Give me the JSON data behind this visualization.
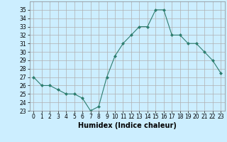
{
  "x": [
    0,
    1,
    2,
    3,
    4,
    5,
    6,
    7,
    8,
    9,
    10,
    11,
    12,
    13,
    14,
    15,
    16,
    17,
    18,
    19,
    20,
    21,
    22,
    23
  ],
  "y": [
    27,
    26,
    26,
    25.5,
    25,
    25,
    24.5,
    23,
    23.5,
    27,
    29.5,
    31,
    32,
    33,
    33,
    35,
    35,
    32,
    32,
    31,
    31,
    30,
    29,
    27.5
  ],
  "line_color": "#2d7d6e",
  "marker": "D",
  "marker_size": 2.0,
  "bg_color": "#cceeff",
  "grid_major_color": "#b0b0b0",
  "grid_minor_color": "#d0d0d0",
  "xlabel": "Humidex (Indice chaleur)",
  "xlim": [
    -0.5,
    23.5
  ],
  "ylim": [
    23,
    36
  ],
  "yticks": [
    23,
    24,
    25,
    26,
    27,
    28,
    29,
    30,
    31,
    32,
    33,
    34,
    35
  ],
  "xticks": [
    0,
    1,
    2,
    3,
    4,
    5,
    6,
    7,
    8,
    9,
    10,
    11,
    12,
    13,
    14,
    15,
    16,
    17,
    18,
    19,
    20,
    21,
    22,
    23
  ],
  "tick_fontsize": 5.5,
  "xlabel_fontsize": 7.0
}
